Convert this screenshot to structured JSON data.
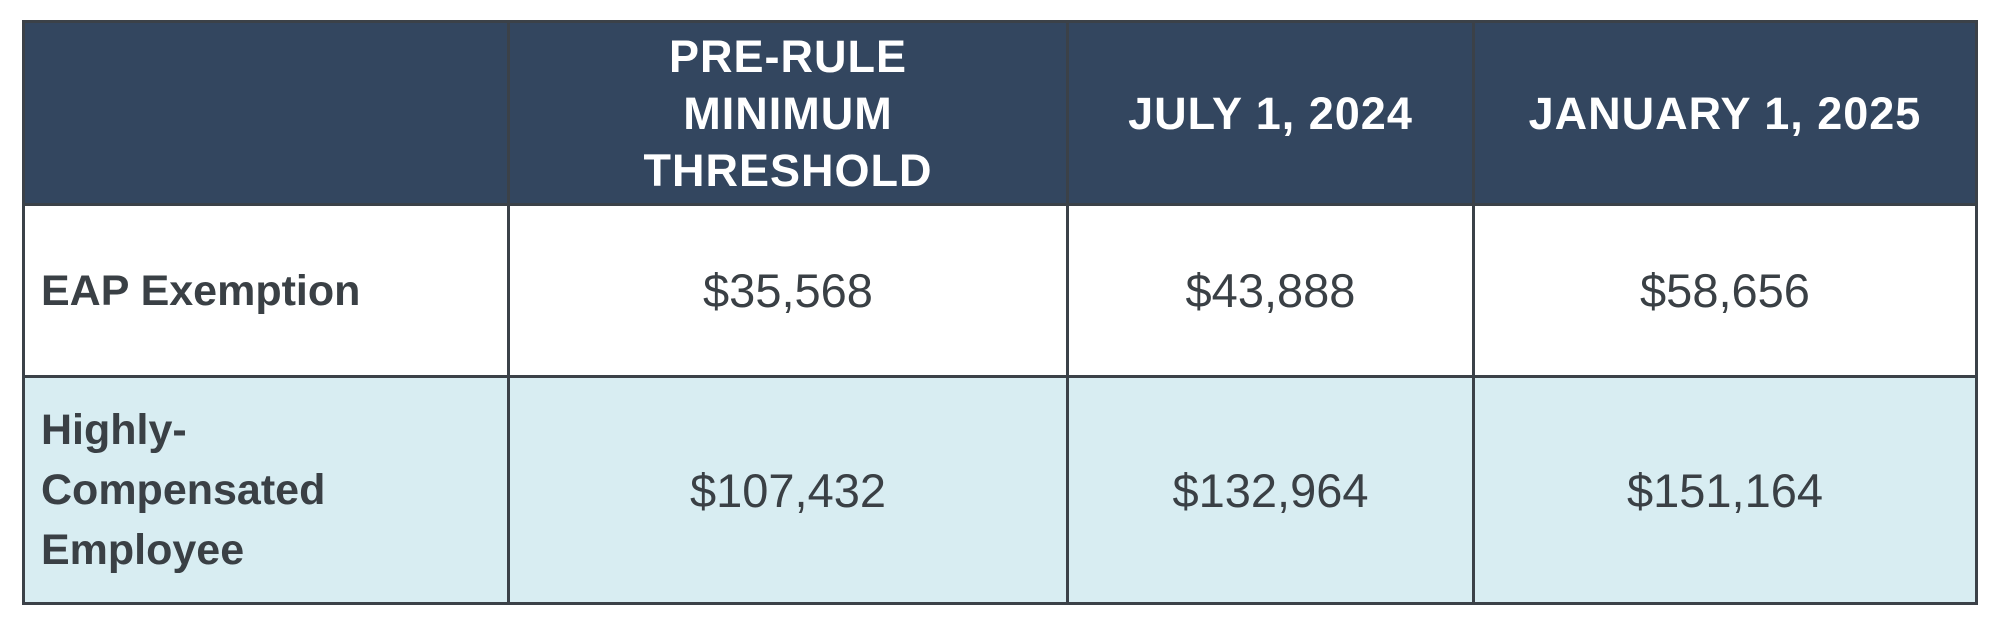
{
  "table": {
    "headers": [
      "",
      "PRE-RULE MINIMUM THRESHOLD",
      "JULY 1, 2024",
      "JANUARY 1, 2025"
    ],
    "rows": [
      {
        "label": "EAP Exemption",
        "values": [
          "$35,568",
          "$43,888",
          "$58,656"
        ]
      },
      {
        "label": "Highly-Compensated Employee",
        "values": [
          "$107,432",
          "$132,964",
          "$151,164"
        ]
      }
    ]
  },
  "colors": {
    "header_bg": "#33465f",
    "header_text": "#ffffff",
    "row_white_bg": "#ffffff",
    "row_blue_bg": "#d8edf2",
    "text": "#3a4045",
    "border": "#3b4148"
  }
}
